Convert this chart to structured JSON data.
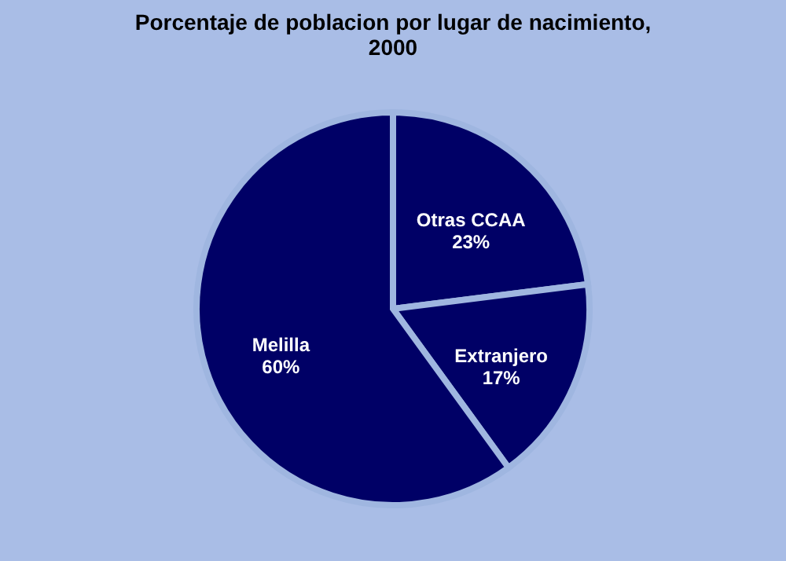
{
  "chart_data": {
    "type": "pie",
    "title": [
      "Porcentaje de poblacion por lugar de nacimiento,",
      "2000"
    ],
    "categories": [
      "Otras CCAA",
      "Extranjero",
      "Melilla"
    ],
    "values": [
      23,
      17,
      60
    ],
    "value_labels": [
      "23%",
      "17%",
      "60%"
    ],
    "colors": [
      "#000066",
      "#000066",
      "#000066"
    ]
  }
}
